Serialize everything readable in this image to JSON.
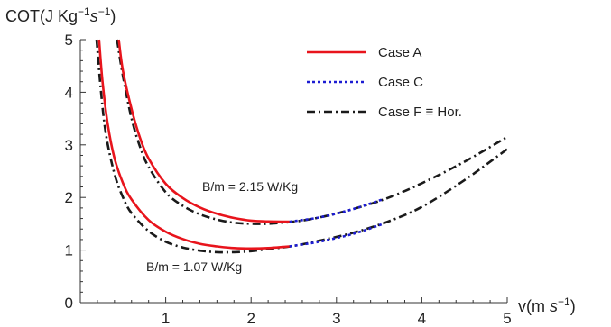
{
  "chart_data": {
    "type": "line",
    "xlabel": "v(m s⁻¹)",
    "ylabel": "COT(J Kg⁻¹s⁻¹)",
    "xlim": [
      0,
      5
    ],
    "ylim": [
      0,
      5
    ],
    "x_ticks": [
      "1",
      "2",
      "3",
      "4",
      "5"
    ],
    "y_ticks": [
      "0",
      "1",
      "2",
      "3",
      "4",
      "5"
    ],
    "grid": false,
    "legend_position": "top-right",
    "legend": [
      {
        "label": "Case A",
        "color": "#e8141c",
        "style": "solid"
      },
      {
        "label": "Case C",
        "color": "#1c1cd2",
        "style": "dotted"
      },
      {
        "label": "Case F ≡  Hor.",
        "color": "#1a1a1a",
        "style": "dashdot"
      }
    ],
    "annotations": [
      {
        "text": "B/m = 2.15 W/Kg",
        "x": 2.65,
        "y": 2.15
      },
      {
        "text": "B/m = 1.07 W/Kg",
        "x": 1.55,
        "y": 0.6
      }
    ],
    "series": [
      {
        "name": "Case A",
        "group": "B/m = 2.15 W/Kg",
        "color": "#e8141c",
        "style": "solid",
        "x": [
          0.45,
          0.5,
          0.6,
          0.7,
          0.8,
          1.0,
          1.2,
          1.4,
          1.6,
          1.8,
          2.0,
          2.2,
          2.45
        ],
        "y": [
          5.0,
          4.4,
          3.68,
          3.13,
          2.74,
          2.26,
          1.99,
          1.81,
          1.69,
          1.61,
          1.56,
          1.545,
          1.54
        ]
      },
      {
        "name": "Case C",
        "group": "B/m = 2.15 W/Kg",
        "color": "#1c1cd2",
        "style": "dotted",
        "x": [
          2.45,
          2.8,
          3.2,
          3.55
        ],
        "y": [
          1.54,
          1.62,
          1.78,
          1.97
        ]
      },
      {
        "name": "Case F ≡  Hor.",
        "group": "B/m = 2.15 W/Kg",
        "color": "#1a1a1a",
        "style": "dashdot",
        "x": [
          0.43,
          0.5,
          0.6,
          0.7,
          0.8,
          1.0,
          1.2,
          1.4,
          1.6,
          1.8,
          2.0,
          2.2,
          2.5,
          2.8,
          3.2,
          3.6,
          4.0,
          4.5,
          5.0
        ],
        "y": [
          5.0,
          4.3,
          3.5,
          2.96,
          2.58,
          2.1,
          1.84,
          1.68,
          1.58,
          1.52,
          1.5,
          1.5,
          1.54,
          1.62,
          1.78,
          1.99,
          2.27,
          2.68,
          3.15
        ]
      },
      {
        "name": "Case A",
        "group": "B/m = 1.07 W/Kg",
        "color": "#e8141c",
        "style": "solid",
        "x": [
          0.22,
          0.26,
          0.32,
          0.4,
          0.5,
          0.6,
          0.8,
          1.0,
          1.2,
          1.4,
          1.6,
          1.8,
          2.0,
          2.2,
          2.45
        ],
        "y": [
          5.0,
          4.2,
          3.4,
          2.75,
          2.27,
          1.96,
          1.57,
          1.35,
          1.21,
          1.12,
          1.07,
          1.04,
          1.03,
          1.04,
          1.07
        ]
      },
      {
        "name": "Case C",
        "group": "B/m = 1.07 W/Kg",
        "color": "#1c1cd2",
        "style": "dotted",
        "x": [
          2.45,
          2.8,
          3.2,
          3.55
        ],
        "y": [
          1.07,
          1.16,
          1.31,
          1.5
        ]
      },
      {
        "name": "Case F ≡  Hor.",
        "group": "B/m = 1.07 W/Kg",
        "color": "#1a1a1a",
        "style": "dashdot",
        "x": [
          0.19,
          0.24,
          0.3,
          0.4,
          0.5,
          0.6,
          0.8,
          1.0,
          1.2,
          1.4,
          1.6,
          1.8,
          2.0,
          2.2,
          2.5,
          2.8,
          3.2,
          3.6,
          4.0,
          4.5,
          5.0
        ],
        "y": [
          5.0,
          4.05,
          3.2,
          2.45,
          2.0,
          1.7,
          1.36,
          1.16,
          1.05,
          0.99,
          0.96,
          0.96,
          0.98,
          1.02,
          1.08,
          1.18,
          1.33,
          1.54,
          1.82,
          2.33,
          2.92
        ]
      }
    ]
  }
}
